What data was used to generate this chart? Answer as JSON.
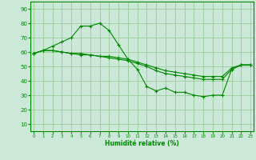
{
  "title": "",
  "xlabel": "Humidité relative (%)",
  "ylabel": "",
  "background_color": "#cbe8d8",
  "grid_color": "#99cc99",
  "line_color": "#008800",
  "x_ticks": [
    0,
    1,
    2,
    3,
    4,
    5,
    6,
    7,
    8,
    9,
    10,
    11,
    12,
    13,
    14,
    15,
    16,
    17,
    18,
    19,
    20,
    21,
    22,
    23
  ],
  "y_ticks": [
    10,
    20,
    30,
    40,
    50,
    60,
    70,
    80,
    90
  ],
  "xlim": [
    -0.3,
    23.3
  ],
  "ylim": [
    5,
    95
  ],
  "series": [
    [
      59,
      61,
      64,
      67,
      70,
      78,
      78,
      80,
      75,
      65,
      55,
      48,
      36,
      33,
      35,
      32,
      32,
      30,
      29,
      30,
      30,
      48,
      51,
      51
    ],
    [
      59,
      61,
      61,
      60,
      59,
      59,
      58,
      57,
      57,
      56,
      55,
      53,
      51,
      49,
      47,
      46,
      45,
      44,
      43,
      43,
      43,
      49,
      51,
      51
    ],
    [
      59,
      61,
      61,
      60,
      59,
      58,
      58,
      57,
      56,
      55,
      54,
      52,
      50,
      47,
      45,
      44,
      43,
      42,
      41,
      41,
      41,
      48,
      51,
      51
    ]
  ]
}
